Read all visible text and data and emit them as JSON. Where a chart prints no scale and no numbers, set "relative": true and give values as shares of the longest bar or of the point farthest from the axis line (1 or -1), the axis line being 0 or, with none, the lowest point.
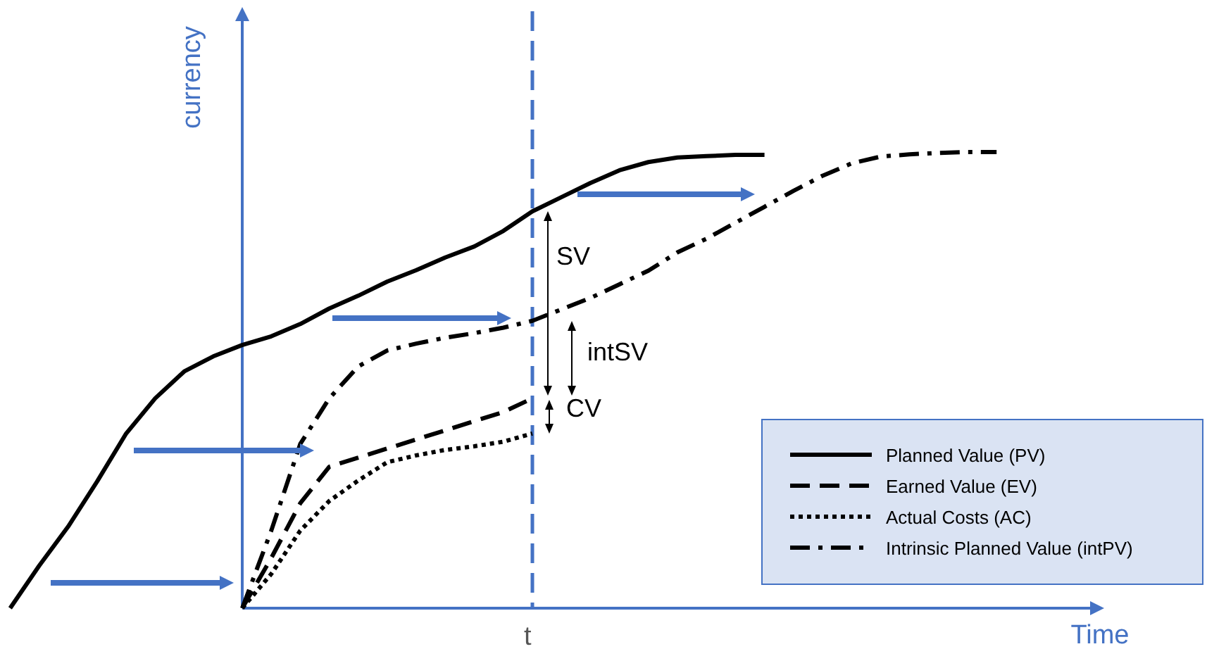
{
  "chart_data": {
    "type": "line",
    "relative": true,
    "xlabel": "Time",
    "ylabel": "currency",
    "legend": "bottom right",
    "categories": [
      null,
      null,
      null,
      null,
      null,
      null,
      null,
      null,
      null,
      null,
      null,
      null,
      null,
      null,
      null,
      null,
      null,
      null,
      null,
      null,
      null,
      null,
      null,
      null,
      null,
      null,
      null,
      null,
      null,
      null,
      null,
      null,
      null,
      null,
      null
    ],
    "annotations": [
      "SV",
      "intSV",
      "CV",
      "t"
    ],
    "series": [
      {
        "name": "Planned Value (PV)",
        "color": "#000000",
        "line_style": "solid",
        "values": [
          0,
          0.093,
          0.179,
          0.278,
          0.383,
          0.46,
          0.519,
          0.552,
          0.577,
          0.596,
          0.623,
          0.657,
          0.685,
          0.716,
          0.741,
          0.769,
          0.793,
          0.827,
          0.87,
          0.901,
          0.932,
          0.96,
          0.978,
          0.988,
          0.991,
          0.994,
          0.994,
          null,
          null,
          null,
          null,
          null,
          null,
          null,
          null
        ]
      },
      {
        "name": "Earned Value (EV)",
        "color": "#000000",
        "line_style": "dashed",
        "values": [
          null,
          null,
          null,
          null,
          null,
          null,
          null,
          null,
          0,
          0.11,
          0.23,
          0.31,
          0.33,
          0.35,
          0.37,
          0.39,
          0.41,
          0.43,
          0.46,
          null,
          null,
          null,
          null,
          null,
          null,
          null,
          null,
          null,
          null,
          null,
          null,
          null,
          null,
          null,
          null
        ]
      },
      {
        "name": "Actual Costs (AC)",
        "color": "#000000",
        "line_style": "dotted",
        "values": [
          null,
          null,
          null,
          null,
          null,
          null,
          null,
          null,
          0,
          0.075,
          0.17,
          0.235,
          0.28,
          0.32,
          0.335,
          0.347,
          0.355,
          0.365,
          0.383,
          null,
          null,
          null,
          null,
          null,
          null,
          null,
          null,
          null,
          null,
          null,
          null,
          null,
          null,
          null,
          null
        ]
      },
      {
        "name": "Intrinsic Planned Value (intPV)",
        "color": "#000000",
        "line_style": "dashdot",
        "values": [
          null,
          null,
          null,
          null,
          null,
          null,
          null,
          null,
          0,
          0.17,
          0.36,
          0.46,
          0.53,
          0.565,
          0.58,
          0.593,
          0.603,
          0.615,
          0.63,
          0.655,
          0.68,
          0.71,
          0.74,
          0.78,
          0.81,
          0.845,
          0.88,
          0.915,
          0.948,
          0.975,
          0.99,
          0.995,
          0.998,
          1,
          1
        ]
      }
    ]
  }
}
